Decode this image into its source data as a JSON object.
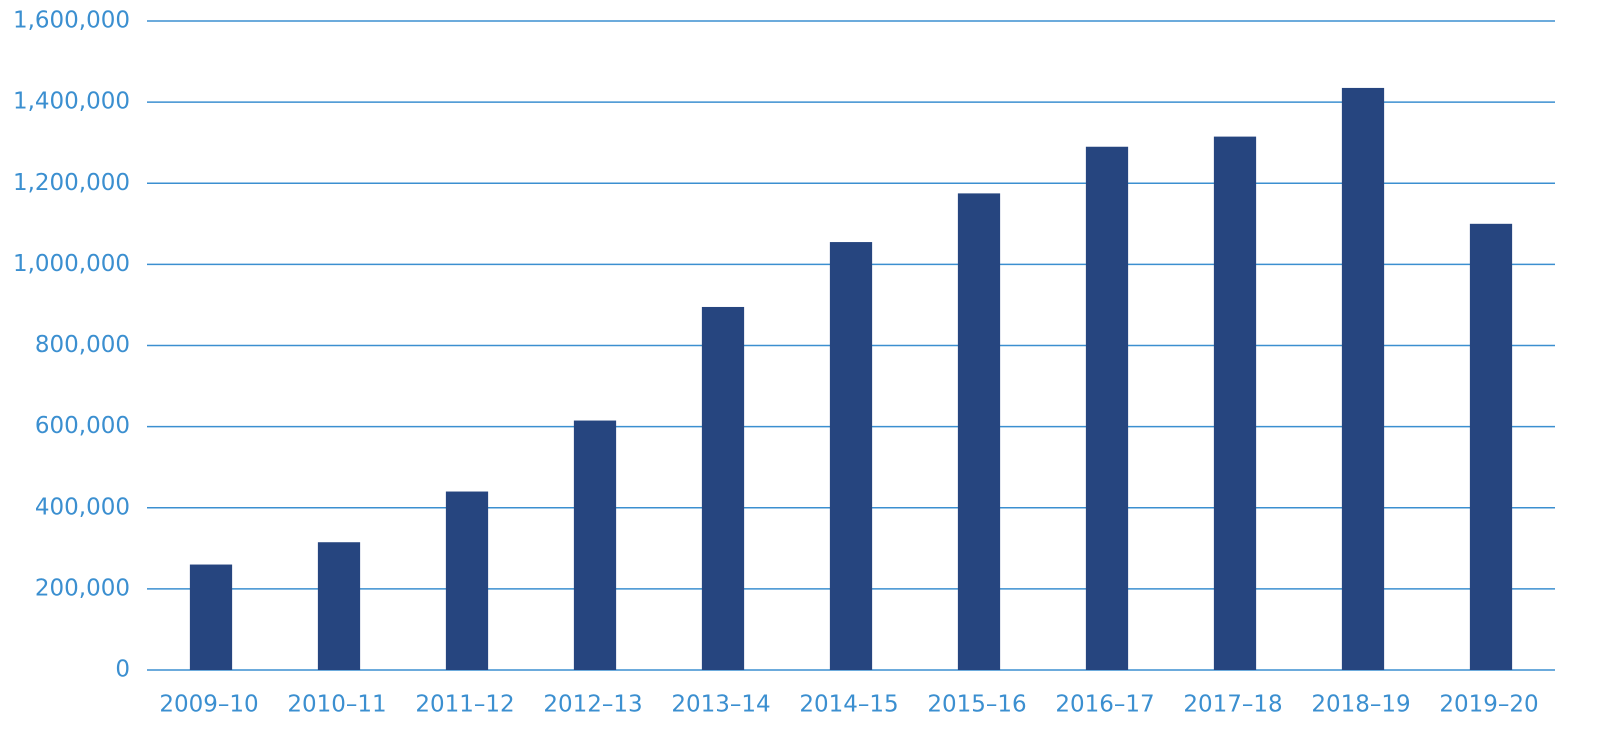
{
  "chart_data": {
    "type": "bar",
    "categories": [
      "2009–10",
      "2010–11",
      "2011–12",
      "2012–13",
      "2013–14",
      "2014–15",
      "2015–16",
      "2016–17",
      "2017–18",
      "2018–19",
      "2019–20"
    ],
    "values": [
      260000,
      315000,
      440000,
      615000,
      895000,
      1055000,
      1175000,
      1290000,
      1315000,
      1435000,
      1100000
    ],
    "color": "#26457f",
    "ylim": [
      0,
      1600000
    ],
    "yticks": [
      0,
      {
        "value": 200000,
        "label": "200,000"
      },
      {
        "value": 400000,
        "label": "400,000"
      },
      {
        "value": 600000,
        "label": "600,000"
      },
      {
        "value": 800000,
        "label": "800,000"
      },
      {
        "value": 1000000,
        "label": "1,000,000"
      },
      {
        "value": 1200000,
        "label": "1,200,000"
      },
      {
        "value": 1400000,
        "label": "1,400,000"
      },
      {
        "value": 1600000,
        "label": "1,600,000"
      }
    ],
    "grid": true
  }
}
